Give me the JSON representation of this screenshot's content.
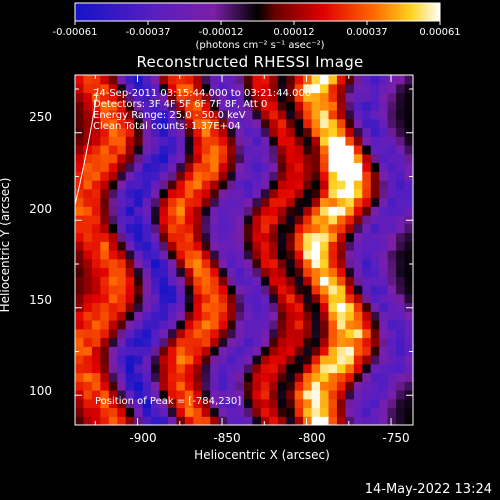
{
  "colorbar": {
    "ticks": [
      "-0.00061",
      "-0.00037",
      "-0.00012",
      "0.00012",
      "0.00037",
      "0.00061"
    ],
    "units": "(photons cm⁻² s⁻¹ asec⁻²)"
  },
  "info": {
    "time": "24-Sep-2011 03:15:44.000 to 03:21:44.000",
    "detectors": "Detectors: 3F 4F 5F 6F 7F 8F, Att 0",
    "energy": "Energy Range: 25.0 - 50.0 keV",
    "clean": "Clean    Total counts: 1.37E+04",
    "peak": "Position of Peak = [-784,230]"
  },
  "footer": {
    "date": "14-May-2022 13:24"
  },
  "chart_data": {
    "type": "heatmap",
    "title": "Reconstructed RHESSI Image",
    "xlabel": "Heliocentric X (arcsec)",
    "ylabel": "Heliocentric Y (arcsec)",
    "xlim": [
      -937,
      -737
    ],
    "ylim": [
      83,
      283
    ],
    "xticks": [
      -900,
      -850,
      -800,
      -750
    ],
    "yticks": [
      100,
      150,
      200,
      250
    ],
    "colorbar_range": [
      -0.00061,
      0.00061
    ],
    "peak_position": [
      -784,
      230
    ],
    "bands": [
      {
        "x": -925,
        "width": 16,
        "value": 0.00035
      },
      {
        "x": -895,
        "width": 14,
        "value": -0.00055
      },
      {
        "x": -868,
        "width": 17,
        "value": 0.0004
      },
      {
        "x": -842,
        "width": 15,
        "value": -0.0004
      },
      {
        "x": -818,
        "width": 14,
        "value": 0.0003
      },
      {
        "x": -806,
        "width": 8,
        "value": -0.0003
      },
      {
        "x": -787,
        "width": 16,
        "value": 0.00055
      },
      {
        "x": -758,
        "width": 13,
        "value": -0.0004
      }
    ]
  }
}
